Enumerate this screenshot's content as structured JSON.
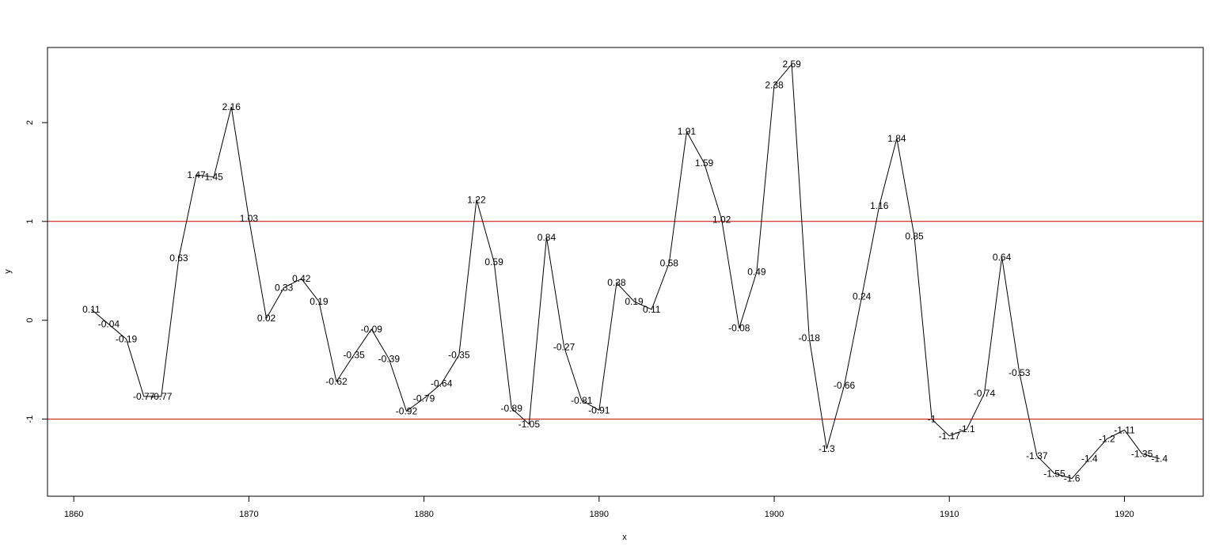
{
  "chart_data": {
    "type": "line",
    "title": "",
    "xlabel": "x",
    "ylabel": "y",
    "xlim": [
      1858.5,
      1924.5
    ],
    "ylim": [
      -1.78,
      2.76
    ],
    "x_ticks": [
      1860,
      1870,
      1880,
      1890,
      1900,
      1910,
      1920
    ],
    "y_ticks": [
      -1,
      0,
      1,
      2
    ],
    "reference_lines": [
      {
        "y": 1,
        "color": "#cc0000"
      },
      {
        "y": -1,
        "color": "#cc0000"
      }
    ],
    "line_color": "#000000",
    "grid": false,
    "x": [
      1861,
      1862,
      1863,
      1864,
      1865,
      1866,
      1867,
      1868,
      1869,
      1870,
      1871,
      1872,
      1873,
      1874,
      1875,
      1876,
      1877,
      1878,
      1879,
      1880,
      1881,
      1882,
      1883,
      1884,
      1885,
      1886,
      1887,
      1888,
      1889,
      1890,
      1891,
      1892,
      1893,
      1894,
      1895,
      1896,
      1897,
      1898,
      1899,
      1900,
      1901,
      1902,
      1903,
      1904,
      1905,
      1906,
      1907,
      1908,
      1909,
      1910,
      1911,
      1912,
      1913,
      1914,
      1915,
      1916,
      1917,
      1918,
      1919,
      1920,
      1921,
      1922
    ],
    "y": [
      0.11,
      -0.04,
      -0.19,
      -0.77,
      -0.77,
      0.63,
      1.47,
      1.45,
      2.16,
      1.03,
      0.02,
      0.33,
      0.42,
      0.19,
      -0.62,
      -0.35,
      -0.09,
      -0.39,
      -0.92,
      -0.79,
      -0.64,
      -0.35,
      1.22,
      0.59,
      -0.89,
      -1.05,
      0.84,
      -0.27,
      -0.81,
      -0.91,
      0.38,
      0.19,
      0.11,
      0.58,
      1.91,
      1.59,
      1.02,
      -0.08,
      0.49,
      2.38,
      2.59,
      -0.18,
      -1.3,
      -0.66,
      0.24,
      1.16,
      1.84,
      0.85,
      -1,
      -1.17,
      -1.1,
      -0.74,
      0.64,
      -0.53,
      -1.37,
      -1.55,
      -1.6,
      -1.4,
      -1.2,
      -1.11,
      -1.35,
      -1.4
    ],
    "labels": [
      "0.11",
      "-0.04",
      "-0.19",
      "-0.77",
      "-0.77",
      "0.63",
      "1.47",
      "1.45",
      "2.16",
      "1.03",
      "0.02",
      "0.33",
      "0.42",
      "0.19",
      "-0.62",
      "-0.35",
      "-0.09",
      "-0.39",
      "-0.92",
      "-0.79",
      "-0.64",
      "-0.35",
      "1.22",
      "0.59",
      "-0.89",
      "-1.05",
      "0.84",
      "-0.27",
      "-0.81",
      "-0.91",
      "0.38",
      "0.19",
      "0.11",
      "0.58",
      "1.91",
      "1.59",
      "1.02",
      "-0.08",
      "0.49",
      "2.38",
      "2.59",
      "-0.18",
      "-1.3",
      "-0.66",
      "0.24",
      "1.16",
      "1.84",
      "0.85",
      "-1",
      "-1.17",
      "-1.1",
      "-0.74",
      "0.64",
      "-0.53",
      "-1.37",
      "-1.55",
      "-1.6",
      "-1.4",
      "-1.2",
      "-1.11",
      "-1.35",
      "-1.4"
    ]
  }
}
